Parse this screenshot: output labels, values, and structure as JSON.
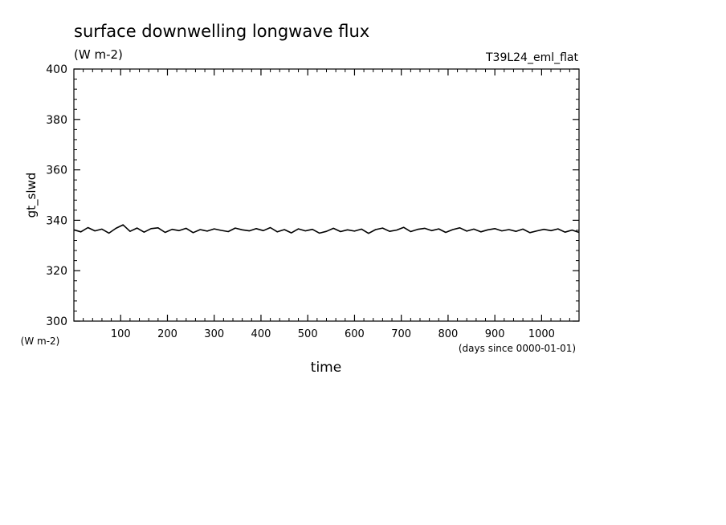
{
  "chart_data": {
    "type": "line",
    "title": "surface downwelling longwave flux",
    "subtitle": "(W m-2)",
    "run_label": "T39L24_eml_flat",
    "ylabel": "gt_slwd",
    "yunit": "(W m-2)",
    "xlabel": "time",
    "xunit": "(days since 0000-01-01)",
    "xlim": [
      0,
      1080
    ],
    "ylim": [
      300,
      400
    ],
    "xticks": [
      100,
      200,
      300,
      400,
      500,
      600,
      700,
      800,
      900,
      1000
    ],
    "yticks": [
      300,
      320,
      340,
      360,
      380,
      400
    ],
    "grid": false,
    "line_color": "#000000",
    "series": [
      {
        "x": [
          0,
          15,
          30,
          45,
          60,
          75,
          90,
          105,
          120,
          135,
          150,
          165,
          180,
          195,
          210,
          225,
          240,
          255,
          270,
          285,
          300,
          315,
          330,
          345,
          360,
          375,
          390,
          405,
          420,
          435,
          450,
          465,
          480,
          495,
          510,
          525,
          540,
          555,
          570,
          585,
          600,
          615,
          630,
          645,
          660,
          675,
          690,
          705,
          720,
          735,
          750,
          765,
          780,
          795,
          810,
          825,
          840,
          855,
          870,
          885,
          900,
          915,
          930,
          945,
          960,
          975,
          990,
          1005,
          1020,
          1035,
          1050,
          1065,
          1080
        ],
        "values": [
          336.2,
          335.4,
          337.1,
          335.8,
          336.5,
          334.9,
          336.8,
          338.2,
          335.6,
          336.9,
          335.3,
          336.7,
          337.0,
          335.2,
          336.4,
          335.9,
          336.8,
          335.1,
          336.3,
          335.7,
          336.6,
          336.0,
          335.5,
          336.9,
          336.2,
          335.8,
          336.7,
          335.9,
          337.1,
          335.4,
          336.3,
          335.0,
          336.6,
          335.8,
          336.4,
          334.9,
          335.6,
          336.8,
          335.5,
          336.2,
          335.7,
          336.5,
          334.8,
          336.3,
          336.9,
          335.6,
          336.1,
          337.2,
          335.5,
          336.4,
          336.8,
          335.9,
          336.6,
          335.2,
          336.3,
          337.0,
          335.7,
          336.5,
          335.4,
          336.2,
          336.7,
          335.8,
          336.3,
          335.6,
          336.5,
          335.1,
          335.8,
          336.4,
          335.9,
          336.6,
          335.3,
          336.1,
          335.2
        ]
      }
    ]
  }
}
